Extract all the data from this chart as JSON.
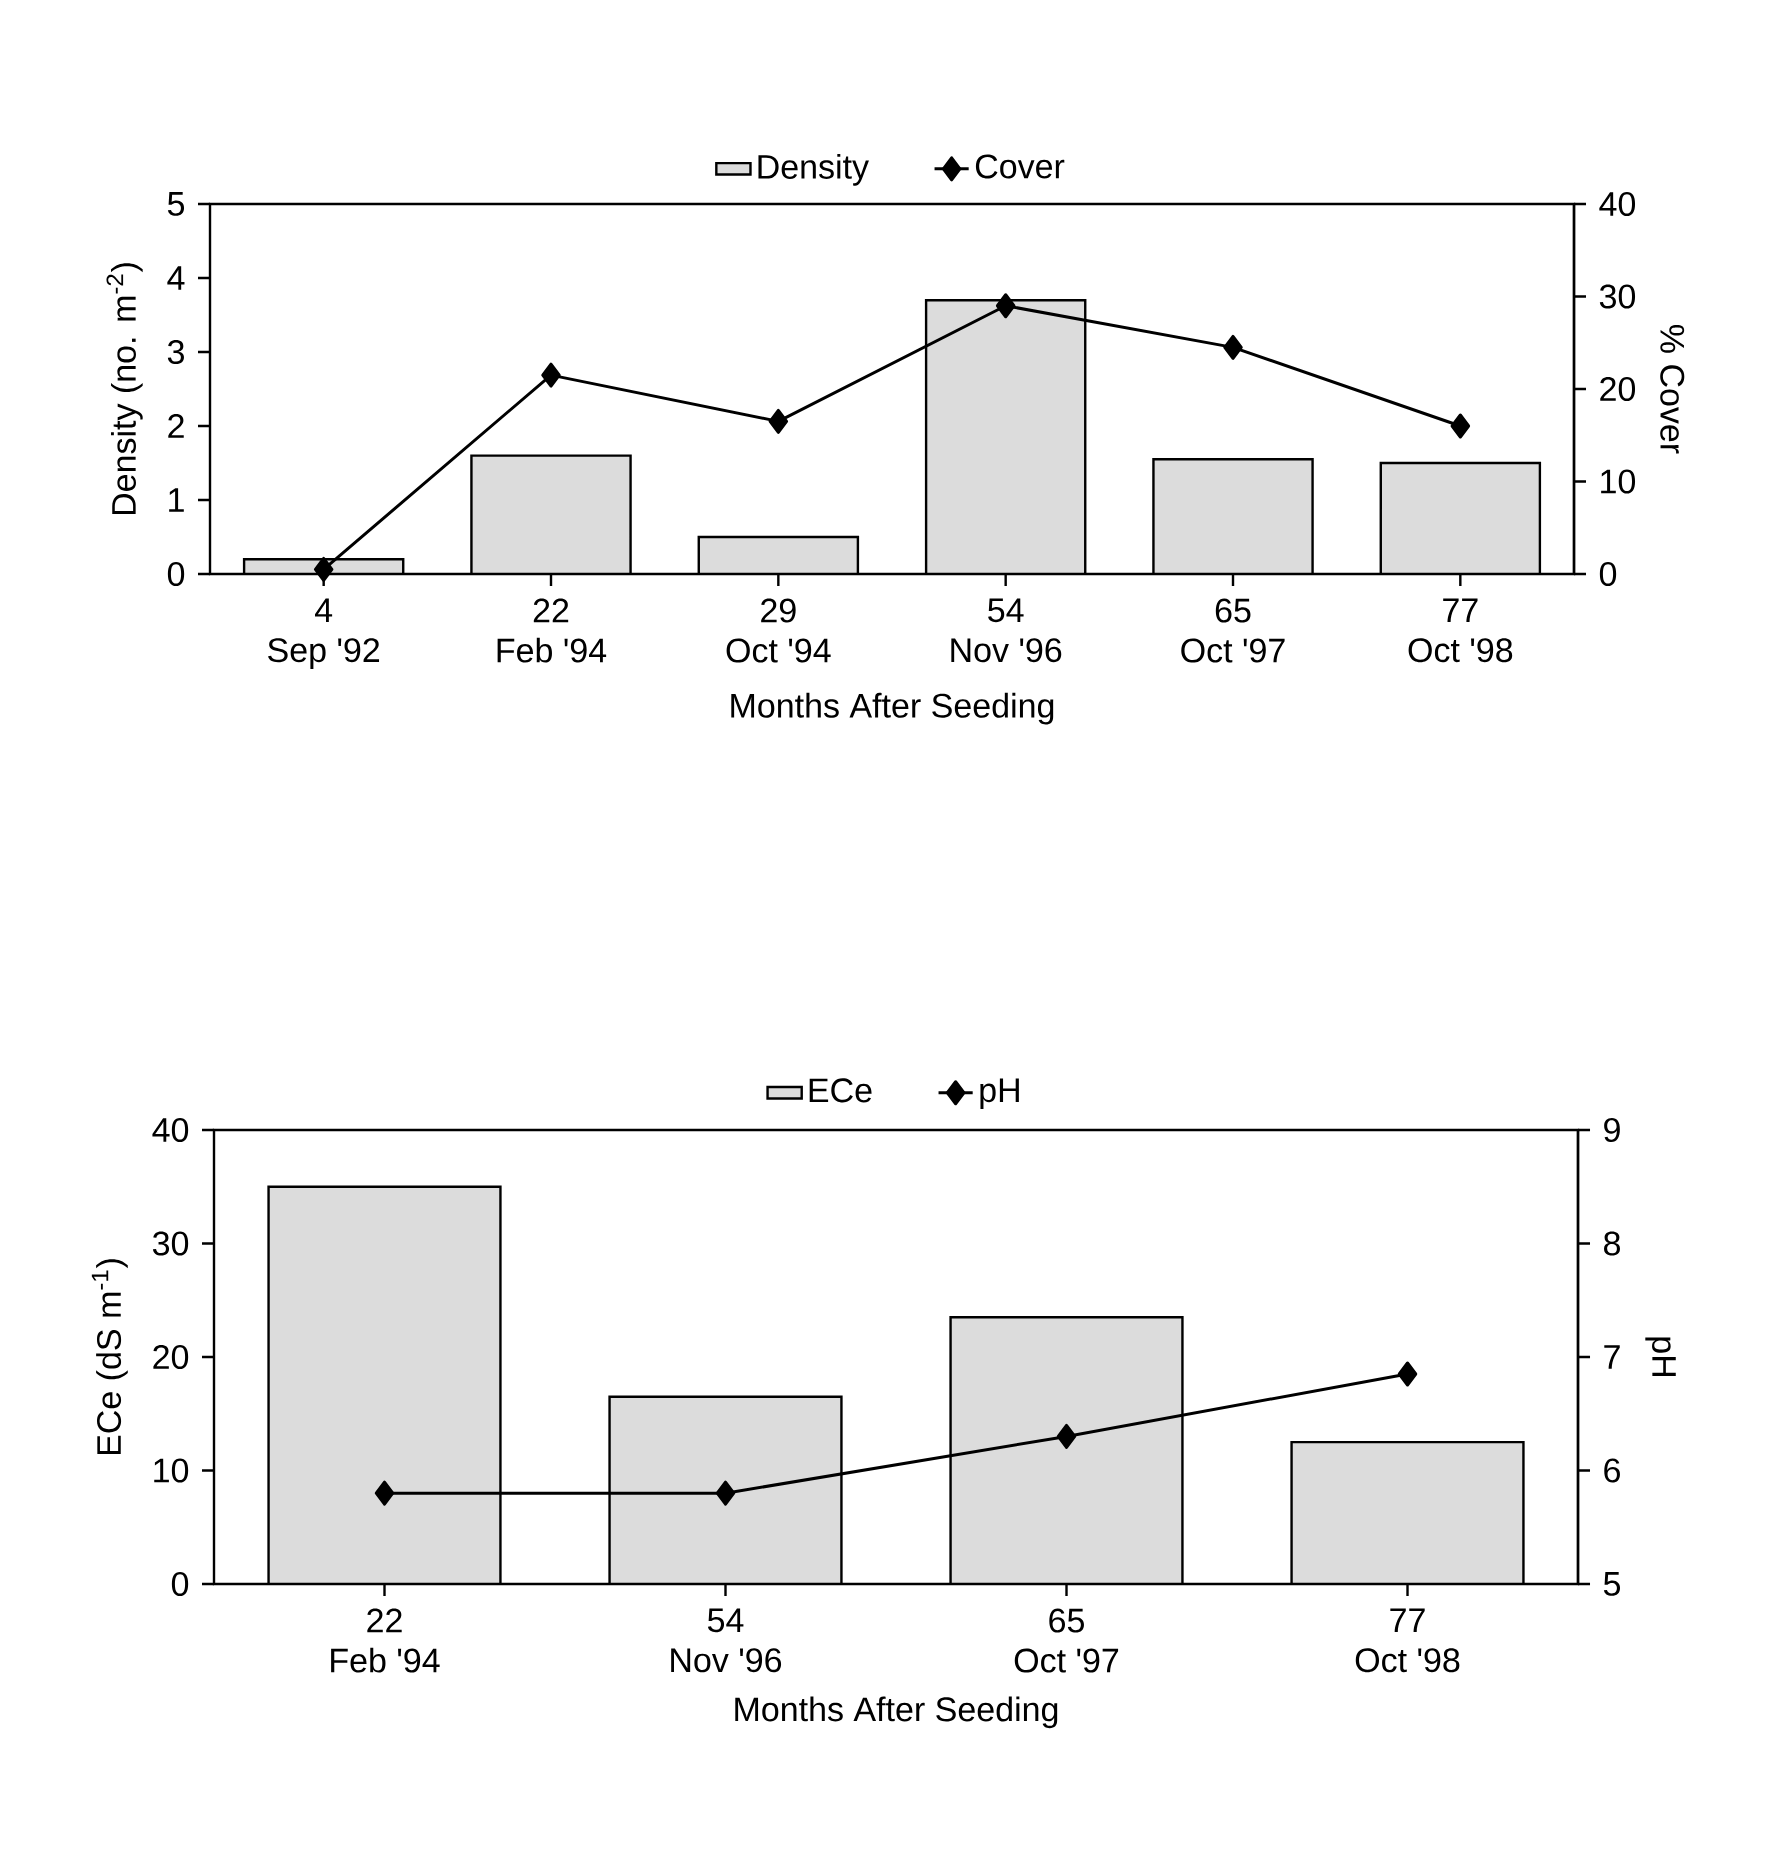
{
  "chart_data": [
    {
      "type": "bar",
      "categories": [
        "4\nSep '92",
        "22\nFeb '94",
        "29\nOct '94",
        "54\nNov '96",
        "65\nOct '97",
        "77\nOct '98"
      ],
      "series": [
        {
          "name": "Density",
          "color": "#dcdcdc",
          "values": [
            0.2,
            1.6,
            0.5,
            3.7,
            1.55,
            1.5
          ]
        },
        {
          "name": "Cover",
          "type": "line",
          "axis": "y2",
          "color": "#000000",
          "marker": "diamond",
          "values": [
            0.5,
            21.5,
            16.5,
            29,
            24.5,
            16
          ]
        }
      ],
      "xlabel": "Months After Seeding",
      "ylabel": "Density (no. m$^{-2}$)",
      "y2label": "% Cover",
      "ylim": [
        0,
        5
      ],
      "yticks": [
        0,
        1,
        2,
        3,
        4,
        5
      ],
      "y2lim": [
        0,
        40
      ],
      "y2ticks": [
        0,
        10,
        20,
        30,
        40
      ],
      "legend": "top"
    },
    {
      "type": "bar",
      "categories": [
        "22\nFeb '94",
        "54\nNov '96",
        "65\nOct '97",
        "77\nOct '98"
      ],
      "series": [
        {
          "name": "ECe",
          "color": "#dcdcdc",
          "values": [
            35,
            16.5,
            23.5,
            12.5
          ]
        },
        {
          "name": "pH",
          "type": "line",
          "axis": "y2",
          "color": "#000000",
          "marker": "diamond",
          "values": [
            5.8,
            5.8,
            6.3,
            6.85
          ]
        }
      ],
      "xlabel": "Months After Seeding",
      "ylabel": "ECe (dS m$^{-1}$)",
      "y2label": "pH",
      "ylim": [
        0,
        40
      ],
      "yticks": [
        0,
        10,
        20,
        30,
        40
      ],
      "y2lim": [
        5,
        9
      ],
      "y2ticks": [
        5,
        6,
        7,
        8,
        9
      ],
      "legend": "top"
    }
  ]
}
